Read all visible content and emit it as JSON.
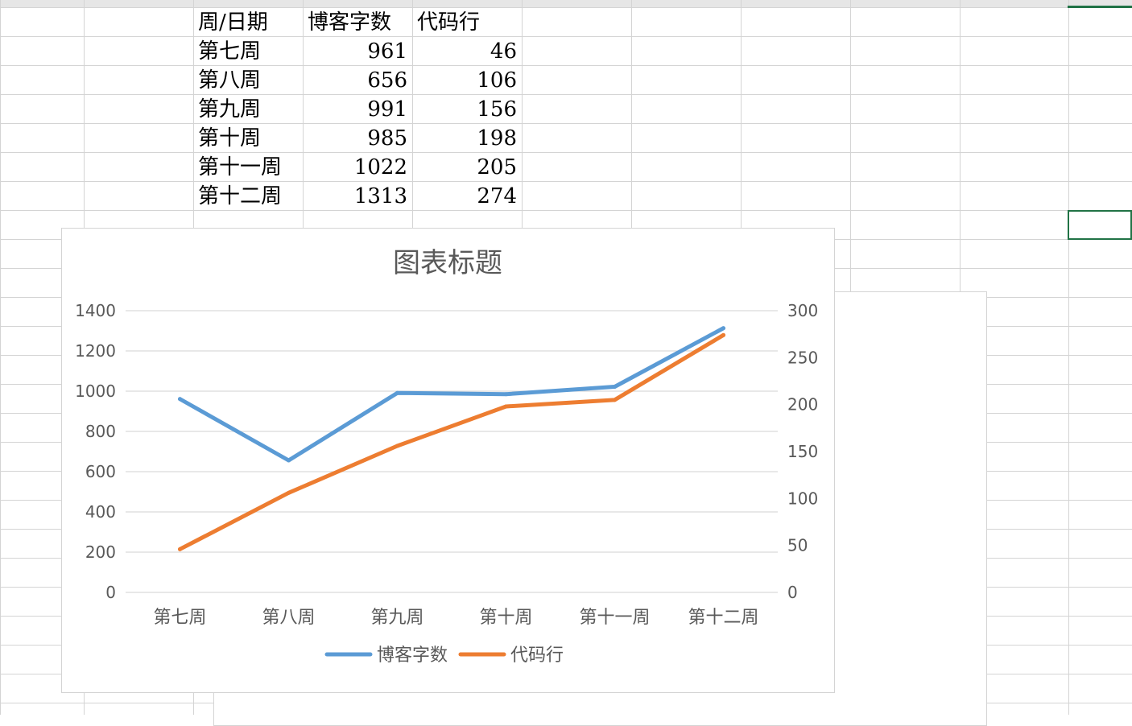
{
  "sheet": {
    "headers": [
      "周/日期",
      "博客字数",
      "代码行"
    ],
    "rows": [
      [
        "第七周",
        "961",
        "46"
      ],
      [
        "第八周",
        "656",
        "106"
      ],
      [
        "第九周",
        "991",
        "156"
      ],
      [
        "第十周",
        "985",
        "198"
      ],
      [
        "第十一周",
        "1022",
        "205"
      ],
      [
        "第十二周",
        "1313",
        "274"
      ]
    ]
  },
  "chart_data": {
    "type": "line",
    "title": "图表标题",
    "categories": [
      "第七周",
      "第八周",
      "第九周",
      "第十周",
      "第十一周",
      "第十二周"
    ],
    "series": [
      {
        "name": "博客字数",
        "values": [
          961,
          656,
          991,
          985,
          1022,
          1313
        ],
        "axis": "left",
        "color": "#5b9bd5"
      },
      {
        "name": "代码行",
        "values": [
          46,
          106,
          156,
          198,
          205,
          274
        ],
        "axis": "right",
        "color": "#ed7d31"
      }
    ],
    "y_left": {
      "min": 0,
      "max": 1400,
      "ticks": [
        "0",
        "200",
        "400",
        "600",
        "800",
        "1000",
        "1200",
        "1400"
      ]
    },
    "y_right": {
      "min": 0,
      "max": 300,
      "ticks": [
        "0",
        "50",
        "100",
        "150",
        "200",
        "250",
        "300"
      ]
    },
    "grid": true,
    "legend": "bottom",
    "colors": {
      "gridline": "#d9d9d9",
      "text": "#595959"
    }
  }
}
